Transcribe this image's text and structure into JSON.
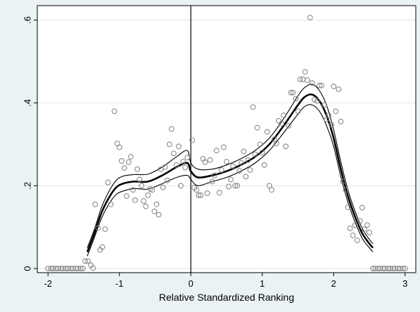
{
  "chart_data": {
    "type": "scatter",
    "title": "",
    "xlabel": "Relative Standardized Ranking",
    "ylabel": "",
    "xlim": [
      -2.15,
      3.15
    ],
    "ylim": [
      -0.01,
      0.635
    ],
    "x_ticks": [
      -2,
      -1,
      0,
      1,
      2,
      3
    ],
    "x_tick_labels": [
      "-2",
      "-1",
      "0",
      "1",
      "2",
      "3"
    ],
    "y_ticks": [
      0,
      0.2,
      0.4,
      0.6
    ],
    "y_tick_labels": [
      "0",
      ".2",
      ".4",
      ".6"
    ],
    "grid": "horizontal",
    "legend": "none",
    "vertical_reference_line": 0,
    "colors": {
      "background": "#eaf2f3",
      "plot_area": "#ffffff",
      "grid": "#dbe7e9",
      "markers": "#808080",
      "lines": "#000000"
    },
    "series": [
      {
        "type": "scatter",
        "marker": "hollow-circle",
        "points": [
          [
            -2.0,
            0
          ],
          [
            -1.96,
            0
          ],
          [
            -1.93,
            0
          ],
          [
            -1.89,
            0
          ],
          [
            -1.86,
            0
          ],
          [
            -1.82,
            0
          ],
          [
            -1.79,
            0
          ],
          [
            -1.75,
            0
          ],
          [
            -1.72,
            0
          ],
          [
            -1.68,
            0
          ],
          [
            -1.65,
            0
          ],
          [
            -1.61,
            0
          ],
          [
            -1.58,
            0
          ],
          [
            -1.54,
            0
          ],
          [
            -1.51,
            0
          ],
          [
            -1.48,
            0.018
          ],
          [
            -1.44,
            0.018
          ],
          [
            -1.4,
            0.008
          ],
          [
            -1.37,
            0.001
          ],
          [
            -1.34,
            0.155
          ],
          [
            -1.3,
            0.098
          ],
          [
            -1.27,
            0.045
          ],
          [
            -1.24,
            0.052
          ],
          [
            -1.2,
            0.095
          ],
          [
            -1.16,
            0.208
          ],
          [
            -1.12,
            0.155
          ],
          [
            -1.07,
            0.38
          ],
          [
            -1.03,
            0.302
          ],
          [
            -1.0,
            0.293
          ],
          [
            -0.97,
            0.26
          ],
          [
            -0.93,
            0.243
          ],
          [
            -0.9,
            0.175
          ],
          [
            -0.87,
            0.257
          ],
          [
            -0.84,
            0.27
          ],
          [
            -0.81,
            0.19
          ],
          [
            -0.78,
            0.165
          ],
          [
            -0.75,
            0.24
          ],
          [
            -0.72,
            0.215
          ],
          [
            -0.69,
            0.2
          ],
          [
            -0.66,
            0.163
          ],
          [
            -0.63,
            0.15
          ],
          [
            -0.6,
            0.177
          ],
          [
            -0.57,
            0.192
          ],
          [
            -0.54,
            0.19
          ],
          [
            -0.51,
            0.138
          ],
          [
            -0.48,
            0.155
          ],
          [
            -0.45,
            0.13
          ],
          [
            -0.42,
            0.24
          ],
          [
            -0.39,
            0.196
          ],
          [
            -0.36,
            0.245
          ],
          [
            -0.33,
            0.213
          ],
          [
            -0.3,
            0.3
          ],
          [
            -0.27,
            0.337
          ],
          [
            -0.24,
            0.278
          ],
          [
            -0.2,
            0.25
          ],
          [
            -0.17,
            0.295
          ],
          [
            -0.14,
            0.2
          ],
          [
            -0.11,
            0.258
          ],
          [
            -0.08,
            0.244
          ],
          [
            -0.05,
            0.268
          ],
          [
            0.02,
            0.31
          ],
          [
            0.05,
            0.195
          ],
          [
            0.08,
            0.19
          ],
          [
            0.11,
            0.177
          ],
          [
            0.14,
            0.177
          ],
          [
            0.17,
            0.265
          ],
          [
            0.2,
            0.257
          ],
          [
            0.23,
            0.182
          ],
          [
            0.27,
            0.262
          ],
          [
            0.3,
            0.21
          ],
          [
            0.33,
            0.225
          ],
          [
            0.36,
            0.285
          ],
          [
            0.4,
            0.183
          ],
          [
            0.43,
            0.238
          ],
          [
            0.46,
            0.293
          ],
          [
            0.5,
            0.258
          ],
          [
            0.53,
            0.198
          ],
          [
            0.56,
            0.215
          ],
          [
            0.59,
            0.247
          ],
          [
            0.62,
            0.2
          ],
          [
            0.65,
            0.2
          ],
          [
            0.68,
            0.236
          ],
          [
            0.71,
            0.255
          ],
          [
            0.74,
            0.283
          ],
          [
            0.77,
            0.222
          ],
          [
            0.8,
            0.262
          ],
          [
            0.83,
            0.238
          ],
          [
            0.87,
            0.39
          ],
          [
            0.9,
            0.276
          ],
          [
            0.93,
            0.34
          ],
          [
            0.97,
            0.3
          ],
          [
            1.0,
            0.28
          ],
          [
            1.03,
            0.25
          ],
          [
            1.07,
            0.33
          ],
          [
            1.1,
            0.2
          ],
          [
            1.13,
            0.19
          ],
          [
            1.17,
            0.312
          ],
          [
            1.2,
            0.302
          ],
          [
            1.23,
            0.357
          ],
          [
            1.27,
            0.35
          ],
          [
            1.3,
            0.37
          ],
          [
            1.33,
            0.295
          ],
          [
            1.37,
            0.345
          ],
          [
            1.4,
            0.425
          ],
          [
            1.43,
            0.425
          ],
          [
            1.47,
            0.41
          ],
          [
            1.5,
            0.38
          ],
          [
            1.53,
            0.457
          ],
          [
            1.57,
            0.457
          ],
          [
            1.6,
            0.475
          ],
          [
            1.63,
            0.455
          ],
          [
            1.67,
            0.606
          ],
          [
            1.7,
            0.448
          ],
          [
            1.73,
            0.408
          ],
          [
            1.77,
            0.405
          ],
          [
            1.8,
            0.442
          ],
          [
            1.83,
            0.442
          ],
          [
            1.87,
            0.395
          ],
          [
            1.9,
            0.36
          ],
          [
            1.93,
            0.37
          ],
          [
            1.97,
            0.347
          ],
          [
            2.0,
            0.44
          ],
          [
            2.03,
            0.38
          ],
          [
            2.07,
            0.433
          ],
          [
            2.1,
            0.355
          ],
          [
            2.13,
            0.21
          ],
          [
            2.17,
            0.19
          ],
          [
            2.2,
            0.148
          ],
          [
            2.23,
            0.097
          ],
          [
            2.27,
            0.08
          ],
          [
            2.3,
            0.105
          ],
          [
            2.33,
            0.068
          ],
          [
            2.37,
            0.115
          ],
          [
            2.4,
            0.147
          ],
          [
            2.43,
            0.095
          ],
          [
            2.47,
            0.105
          ],
          [
            2.5,
            0.087
          ],
          [
            2.55,
            0
          ],
          [
            2.58,
            0
          ],
          [
            2.62,
            0
          ],
          [
            2.65,
            0
          ],
          [
            2.69,
            0
          ],
          [
            2.72,
            0
          ],
          [
            2.76,
            0
          ],
          [
            2.79,
            0
          ],
          [
            2.83,
            0
          ],
          [
            2.86,
            0
          ],
          [
            2.9,
            0
          ],
          [
            2.93,
            0
          ],
          [
            2.97,
            0
          ],
          [
            3.0,
            0
          ]
        ]
      },
      {
        "type": "line",
        "style": "thick",
        "x": [
          -1.45,
          -1.35,
          -1.25,
          -1.15,
          -1.05,
          -0.95,
          -0.8,
          -0.6,
          -0.4,
          -0.2,
          -0.05,
          0.0,
          0.1,
          0.3,
          0.5,
          0.7,
          0.9,
          1.1,
          1.3,
          1.5,
          1.6,
          1.7,
          1.8,
          1.9,
          2.0,
          2.1,
          2.2,
          2.3,
          2.4,
          2.5,
          2.55
        ],
        "y": [
          0.04,
          0.085,
          0.135,
          0.17,
          0.195,
          0.205,
          0.21,
          0.21,
          0.225,
          0.245,
          0.255,
          0.235,
          0.22,
          0.225,
          0.235,
          0.25,
          0.27,
          0.3,
          0.345,
          0.395,
          0.415,
          0.42,
          0.405,
          0.37,
          0.315,
          0.24,
          0.175,
          0.125,
          0.085,
          0.06,
          0.05
        ]
      },
      {
        "type": "line",
        "style": "thin",
        "x": [
          -1.45,
          -1.35,
          -1.25,
          -1.15,
          -1.05,
          -0.95,
          -0.8,
          -0.6,
          -0.4,
          -0.2,
          -0.05,
          0.0,
          0.1,
          0.3,
          0.5,
          0.7,
          0.9,
          1.1,
          1.3,
          1.5,
          1.6,
          1.7,
          1.8,
          1.9,
          2.0,
          2.1,
          2.2,
          2.3,
          2.4,
          2.5,
          2.55
        ],
        "y": [
          0.05,
          0.095,
          0.148,
          0.185,
          0.212,
          0.223,
          0.227,
          0.228,
          0.245,
          0.27,
          0.285,
          0.255,
          0.24,
          0.24,
          0.25,
          0.265,
          0.285,
          0.315,
          0.362,
          0.417,
          0.438,
          0.445,
          0.43,
          0.395,
          0.335,
          0.258,
          0.19,
          0.138,
          0.097,
          0.07,
          0.06
        ]
      },
      {
        "type": "line",
        "style": "thin",
        "x": [
          -1.45,
          -1.35,
          -1.25,
          -1.15,
          -1.05,
          -0.95,
          -0.8,
          -0.6,
          -0.4,
          -0.2,
          -0.05,
          0.0,
          0.1,
          0.3,
          0.5,
          0.7,
          0.9,
          1.1,
          1.3,
          1.5,
          1.6,
          1.7,
          1.8,
          1.9,
          2.0,
          2.1,
          2.2,
          2.3,
          2.4,
          2.5,
          2.55
        ],
        "y": [
          0.03,
          0.075,
          0.122,
          0.155,
          0.178,
          0.187,
          0.193,
          0.192,
          0.205,
          0.22,
          0.225,
          0.215,
          0.2,
          0.21,
          0.22,
          0.235,
          0.255,
          0.285,
          0.328,
          0.373,
          0.392,
          0.395,
          0.38,
          0.345,
          0.295,
          0.222,
          0.16,
          0.112,
          0.073,
          0.05,
          0.04
        ]
      }
    ]
  }
}
